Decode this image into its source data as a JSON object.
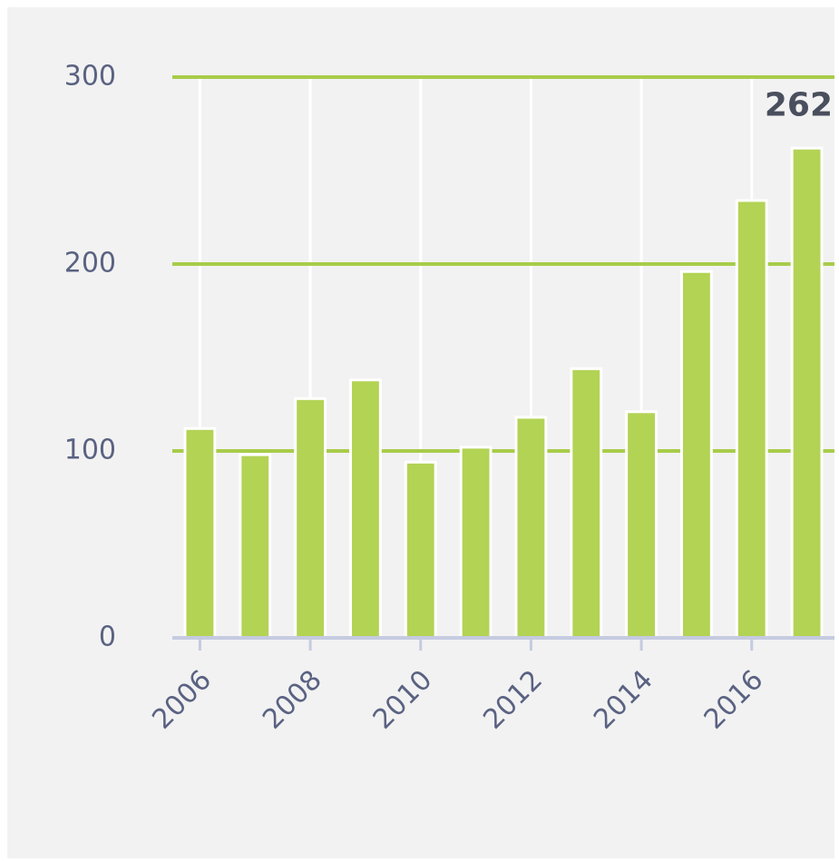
{
  "chart_data": {
    "type": "bar",
    "x": [
      2006,
      2007,
      2008,
      2009,
      2010,
      2011,
      2012,
      2013,
      2014,
      2015,
      2016,
      2017
    ],
    "values": [
      112,
      98,
      128,
      138,
      94,
      102,
      118,
      144,
      121,
      196,
      234,
      262
    ],
    "value_labels": [
      null,
      null,
      null,
      null,
      null,
      null,
      null,
      null,
      null,
      null,
      null,
      "262"
    ],
    "color": "#b3d355",
    "xlim": [
      2005.5,
      2017.5
    ],
    "xticks": [
      2006,
      2008,
      2010,
      2012,
      2014,
      2016
    ],
    "ylim": [
      0,
      300
    ],
    "yticks": [
      0,
      100,
      200,
      300
    ],
    "grid": true
  }
}
